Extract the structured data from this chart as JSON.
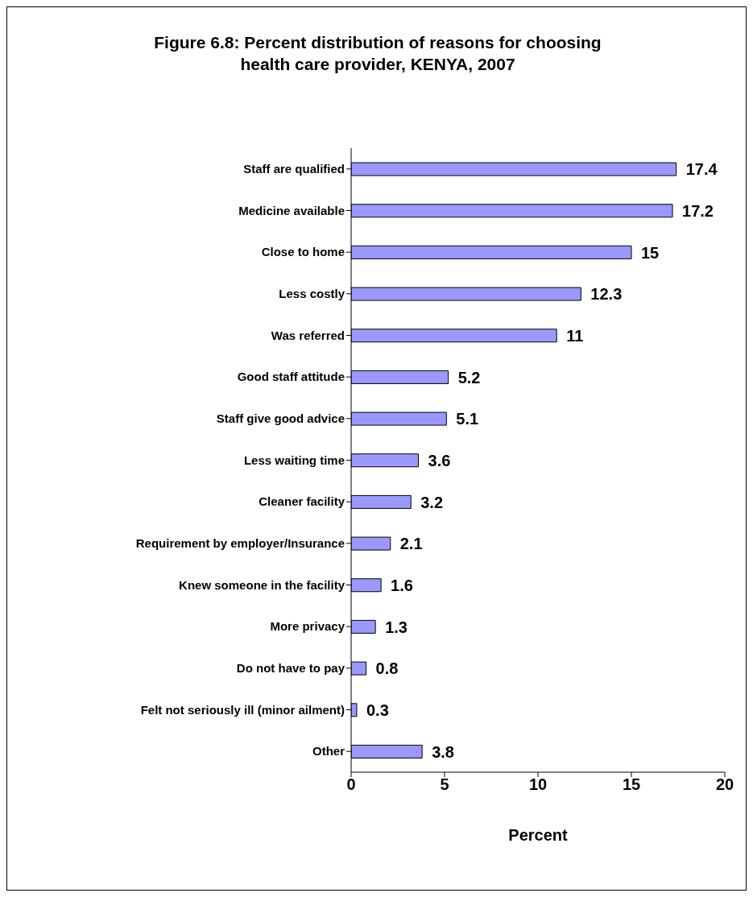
{
  "chart_data": {
    "type": "bar",
    "orientation": "horizontal",
    "title": "Figure 6.8: Percent distribution of reasons for choosing health care provider, KENYA, 2007",
    "xlabel": "Percent",
    "categories": [
      "Staff are qualified",
      "Medicine available",
      "Close to home",
      "Less costly",
      "Was referred",
      "Good staff attitude",
      "Staff give good advice",
      "Less waiting time",
      "Cleaner facility",
      "Requirement by employer/Insurance",
      "Knew someone in the facility",
      "More privacy",
      "Do not have to pay",
      "Felt not seriously ill (minor ailment)",
      "Other"
    ],
    "values": [
      17.4,
      17.2,
      15,
      12.3,
      11,
      5.2,
      5.1,
      3.6,
      3.2,
      2.1,
      1.6,
      1.3,
      0.8,
      0.3,
      3.8
    ],
    "color": "#9999ff",
    "xlim": [
      0,
      20
    ],
    "xticks": [
      0,
      5,
      10,
      15,
      20
    ],
    "grid": false,
    "legend": false,
    "data_labels": true
  }
}
